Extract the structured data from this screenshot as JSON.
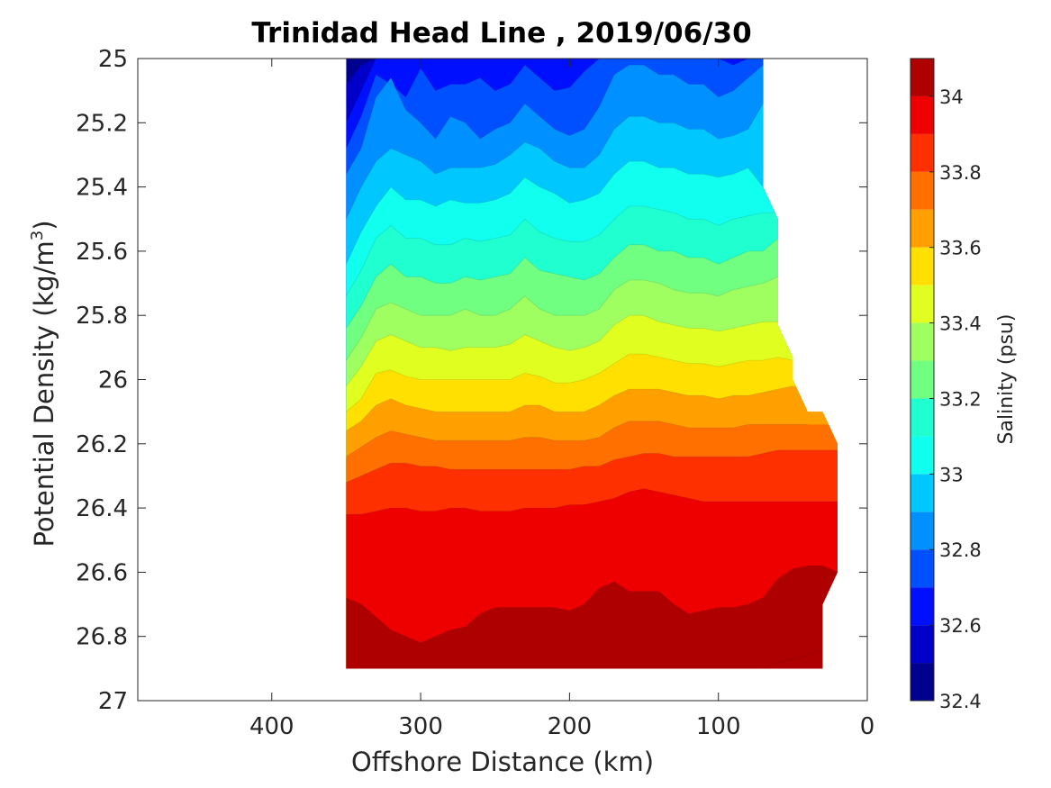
{
  "chart_data": {
    "type": "contour",
    "title": "Trinidad Head Line , 2019/06/30",
    "xlabel": "Offshore Distance (km)",
    "ylabel_main": "Potential Density (kg/m",
    "ylabel_sup": "3",
    "ylabel_end": ")",
    "colorbar_label": "Salinity (psu)",
    "xlim": [
      490,
      0
    ],
    "x_reversed": true,
    "ylim": [
      25,
      27
    ],
    "y_reversed": true,
    "x_ticks": [
      {
        "value": 400,
        "label": "400"
      },
      {
        "value": 300,
        "label": "300"
      },
      {
        "value": 200,
        "label": "200"
      },
      {
        "value": 100,
        "label": "100"
      },
      {
        "value": 0,
        "label": "0"
      }
    ],
    "y_ticks": [
      {
        "value": 25,
        "label": "25"
      },
      {
        "value": 25.2,
        "label": "25.2"
      },
      {
        "value": 25.4,
        "label": "25.4"
      },
      {
        "value": 25.6,
        "label": "25.6"
      },
      {
        "value": 25.8,
        "label": "25.8"
      },
      {
        "value": 26,
        "label": "26"
      },
      {
        "value": 26.2,
        "label": "26.2"
      },
      {
        "value": 26.4,
        "label": "26.4"
      },
      {
        "value": 26.6,
        "label": "26.6"
      },
      {
        "value": 26.8,
        "label": "26.8"
      },
      {
        "value": 27,
        "label": "27"
      }
    ],
    "colorbar_range": [
      32.4,
      34.1
    ],
    "colorbar_ticks": [
      {
        "value": 32.4,
        "label": "32.4"
      },
      {
        "value": 32.6,
        "label": "32.6"
      },
      {
        "value": 32.8,
        "label": "32.8"
      },
      {
        "value": 33,
        "label": "33"
      },
      {
        "value": 33.2,
        "label": "33.2"
      },
      {
        "value": 33.4,
        "label": "33.4"
      },
      {
        "value": 33.6,
        "label": "33.6"
      },
      {
        "value": 33.8,
        "label": "33.8"
      },
      {
        "value": 34,
        "label": "34"
      }
    ],
    "levels": [
      32.4,
      32.5,
      32.6,
      32.7,
      32.8,
      32.9,
      33.0,
      33.1,
      33.2,
      33.3,
      33.4,
      33.5,
      33.6,
      33.7,
      33.8,
      33.9,
      34.0,
      34.1
    ],
    "colors": [
      "#00008f",
      "#0000c8",
      "#0010ff",
      "#0050ff",
      "#0090ff",
      "#00c8ff",
      "#10ffef",
      "#20ffcf",
      "#70ff80",
      "#a0ff60",
      "#e0ff20",
      "#ffe000",
      "#ffa000",
      "#ff7000",
      "#ff3000",
      "#ef0000",
      "#af0000"
    ],
    "grid": false,
    "data_extent": {
      "x": [
        350,
        350,
        70,
        70,
        60,
        60,
        50,
        50,
        20,
        20,
        30,
        30
      ],
      "y": [
        25,
        26.9,
        26.9,
        26.9,
        26.9,
        26.9,
        26.9,
        26.9,
        26.6,
        26.2,
        26.1,
        26.9
      ],
      "right_boundary": [
        {
          "x": 70,
          "y": 25
        },
        {
          "x": 70,
          "y": 25.4
        },
        {
          "x": 60,
          "y": 25.5
        },
        {
          "x": 60,
          "y": 25.83
        },
        {
          "x": 50,
          "y": 25.93
        },
        {
          "x": 50,
          "y": 26.0
        },
        {
          "x": 40,
          "y": 26.1
        },
        {
          "x": 30,
          "y": 26.1
        },
        {
          "x": 20,
          "y": 26.2
        },
        {
          "x": 20,
          "y": 26.6
        },
        {
          "x": 30,
          "y": 26.7
        },
        {
          "x": 30,
          "y": 26.9
        }
      ],
      "left_x": 350,
      "bottom_y": 26.9
    },
    "contour_x": [
      350,
      340,
      330,
      320,
      310,
      300,
      290,
      280,
      270,
      260,
      250,
      240,
      230,
      220,
      210,
      200,
      190,
      180,
      170,
      160,
      150,
      140,
      130,
      120,
      110,
      100,
      90,
      80,
      70,
      60,
      50,
      40,
      30,
      20
    ],
    "contour_lines": [
      {
        "level": 32.5,
        "y": [
          25.08,
          25.02,
          25.0,
          25.0,
          25.0,
          25.0,
          25.0,
          25.0,
          25.0,
          25.0,
          25.0,
          25.0,
          25.0,
          25.0,
          25.0,
          25.0,
          25.0,
          25.0,
          25.0,
          25.0,
          25.0,
          25.0,
          25.0,
          25.0,
          25.0,
          25.0,
          25.0,
          25.0,
          25.0,
          null,
          null,
          null,
          null,
          null
        ]
      },
      {
        "level": 32.6,
        "y": [
          25.2,
          25.1,
          25.0,
          25.0,
          25.0,
          25.0,
          25.0,
          25.0,
          25.0,
          25.0,
          25.0,
          25.0,
          25.0,
          25.0,
          25.0,
          25.0,
          25.0,
          25.0,
          25.0,
          25.0,
          25.0,
          25.0,
          25.0,
          25.0,
          25.0,
          25.0,
          25.0,
          25.0,
          25.0,
          null,
          null,
          null,
          null,
          null
        ]
      },
      {
        "level": 32.7,
        "y": [
          25.28,
          25.18,
          25.05,
          25.08,
          25.12,
          25.03,
          25.1,
          25.08,
          25.08,
          25.06,
          25.1,
          25.08,
          25.02,
          25.06,
          25.1,
          25.09,
          25.04,
          25.0,
          25.0,
          25.0,
          25.0,
          25.0,
          25.0,
          25.0,
          25.0,
          25.0,
          25.02,
          25.0,
          25.0,
          null,
          null,
          null,
          null,
          null
        ]
      },
      {
        "level": 32.8,
        "y": [
          25.36,
          25.28,
          25.12,
          25.06,
          25.16,
          25.2,
          25.25,
          25.18,
          25.2,
          25.25,
          25.22,
          25.2,
          25.14,
          25.18,
          25.22,
          25.24,
          25.22,
          25.15,
          25.05,
          25.02,
          25.02,
          25.05,
          25.05,
          25.08,
          25.08,
          25.12,
          25.1,
          25.06,
          25.02,
          null,
          null,
          null,
          null,
          null
        ]
      },
      {
        "level": 32.9,
        "y": [
          25.5,
          25.4,
          25.32,
          25.28,
          25.3,
          25.32,
          25.36,
          25.34,
          25.34,
          25.34,
          25.33,
          25.3,
          25.26,
          25.28,
          25.32,
          25.34,
          25.34,
          25.3,
          25.22,
          25.18,
          25.18,
          25.2,
          25.2,
          25.22,
          25.22,
          25.25,
          25.24,
          25.22,
          25.14,
          null,
          null,
          null,
          null,
          null
        ]
      },
      {
        "level": 33.0,
        "y": [
          25.64,
          25.54,
          25.46,
          25.4,
          25.44,
          25.44,
          25.46,
          25.44,
          25.45,
          25.45,
          25.44,
          25.42,
          25.37,
          25.4,
          25.42,
          25.45,
          25.44,
          25.42,
          25.36,
          25.32,
          25.32,
          25.34,
          25.34,
          25.36,
          25.36,
          25.37,
          25.36,
          25.34,
          25.4,
          null,
          null,
          null,
          null,
          null
        ]
      },
      {
        "level": 33.1,
        "y": [
          25.74,
          25.66,
          25.56,
          25.52,
          25.56,
          25.56,
          25.58,
          25.58,
          25.56,
          25.57,
          25.56,
          25.55,
          25.5,
          25.54,
          25.56,
          25.57,
          25.57,
          25.55,
          25.5,
          25.46,
          25.46,
          25.47,
          25.48,
          25.5,
          25.5,
          25.52,
          25.5,
          25.49,
          25.48,
          25.48,
          null,
          null,
          null,
          null
        ]
      },
      {
        "level": 33.2,
        "y": [
          25.84,
          25.77,
          25.68,
          25.64,
          25.68,
          25.68,
          25.7,
          25.7,
          25.68,
          25.69,
          25.68,
          25.67,
          25.62,
          25.66,
          25.67,
          25.68,
          25.69,
          25.67,
          25.62,
          25.58,
          25.58,
          25.6,
          25.6,
          25.62,
          25.62,
          25.64,
          25.62,
          25.6,
          25.6,
          25.56,
          null,
          null,
          null,
          null
        ]
      },
      {
        "level": 33.3,
        "y": [
          25.94,
          25.87,
          25.78,
          25.76,
          25.78,
          25.8,
          25.8,
          25.8,
          25.78,
          25.8,
          25.8,
          25.78,
          25.74,
          25.78,
          25.8,
          25.8,
          25.8,
          25.78,
          25.72,
          25.69,
          25.69,
          25.7,
          25.72,
          25.73,
          25.73,
          25.74,
          25.72,
          25.71,
          25.7,
          25.68,
          null,
          null,
          null,
          null
        ]
      },
      {
        "level": 33.4,
        "y": [
          26.02,
          25.96,
          25.88,
          25.86,
          25.88,
          25.9,
          25.9,
          25.91,
          25.9,
          25.9,
          25.9,
          25.89,
          25.86,
          25.88,
          25.9,
          25.91,
          25.9,
          25.88,
          25.83,
          25.8,
          25.8,
          25.82,
          25.83,
          25.84,
          25.84,
          25.85,
          25.84,
          25.83,
          25.82,
          25.82,
          null,
          null,
          null,
          null
        ]
      },
      {
        "level": 33.5,
        "y": [
          26.1,
          26.06,
          25.98,
          25.97,
          25.99,
          26.0,
          26.0,
          26.0,
          26.0,
          26.0,
          26.0,
          26.0,
          25.98,
          25.99,
          26.01,
          26.01,
          26.0,
          25.98,
          25.95,
          25.92,
          25.92,
          25.93,
          25.94,
          25.95,
          25.95,
          25.96,
          25.95,
          25.94,
          25.94,
          25.93,
          25.94,
          null,
          null,
          null
        ]
      },
      {
        "level": 33.6,
        "y": [
          26.16,
          26.13,
          26.08,
          26.06,
          26.08,
          26.09,
          26.1,
          26.1,
          26.1,
          26.1,
          26.1,
          26.1,
          26.08,
          26.08,
          26.1,
          26.1,
          26.1,
          26.08,
          26.05,
          26.03,
          26.03,
          26.03,
          26.04,
          26.05,
          26.05,
          26.06,
          26.05,
          26.05,
          26.04,
          26.03,
          26.02,
          null,
          null,
          null
        ]
      },
      {
        "level": 33.7,
        "y": [
          26.24,
          26.21,
          26.18,
          26.16,
          26.17,
          26.18,
          26.19,
          26.19,
          26.19,
          26.19,
          26.19,
          26.19,
          26.18,
          26.18,
          26.19,
          26.19,
          26.19,
          26.18,
          26.15,
          26.13,
          26.13,
          26.13,
          26.14,
          26.15,
          26.15,
          26.15,
          26.15,
          26.14,
          26.14,
          26.14,
          26.14,
          26.14,
          null,
          null
        ]
      },
      {
        "level": 33.8,
        "y": [
          26.32,
          26.3,
          26.28,
          26.26,
          26.26,
          26.27,
          26.27,
          26.28,
          26.28,
          26.28,
          26.28,
          26.28,
          26.28,
          26.28,
          26.28,
          26.28,
          26.27,
          26.27,
          26.25,
          26.24,
          26.23,
          26.23,
          26.24,
          26.24,
          26.24,
          26.24,
          26.24,
          26.24,
          26.23,
          26.22,
          26.22,
          26.22,
          26.22,
          26.22
        ]
      },
      {
        "level": 33.9,
        "y": [
          26.42,
          26.42,
          26.41,
          26.4,
          26.4,
          26.41,
          26.41,
          26.4,
          26.4,
          26.41,
          26.41,
          26.41,
          26.4,
          26.4,
          26.4,
          26.39,
          26.39,
          26.38,
          26.37,
          26.35,
          26.34,
          26.35,
          26.36,
          26.37,
          26.38,
          26.38,
          26.38,
          26.38,
          26.38,
          26.38,
          26.38,
          26.38,
          26.38,
          26.38
        ]
      },
      {
        "level": 34.0,
        "y": [
          26.68,
          26.7,
          26.74,
          26.78,
          26.8,
          26.82,
          26.8,
          26.78,
          26.77,
          26.73,
          26.71,
          26.71,
          26.71,
          26.71,
          26.71,
          26.72,
          26.7,
          26.65,
          26.63,
          26.66,
          26.66,
          26.66,
          26.7,
          26.73,
          26.72,
          26.71,
          26.71,
          26.7,
          26.68,
          26.62,
          26.59,
          26.58,
          26.58,
          26.6
        ]
      },
      {
        "level": 34.1,
        "y": [
          26.9,
          26.9,
          26.9,
          26.9,
          26.9,
          26.9,
          26.9,
          26.9,
          26.9,
          26.9,
          26.9,
          26.9,
          26.9,
          26.9,
          26.9,
          26.9,
          26.9,
          26.9,
          26.9,
          26.9,
          26.9,
          26.9,
          26.9,
          26.9,
          26.9,
          26.9,
          26.9,
          26.9,
          26.9,
          26.88,
          26.87,
          26.86,
          26.84,
          null
        ]
      }
    ]
  }
}
